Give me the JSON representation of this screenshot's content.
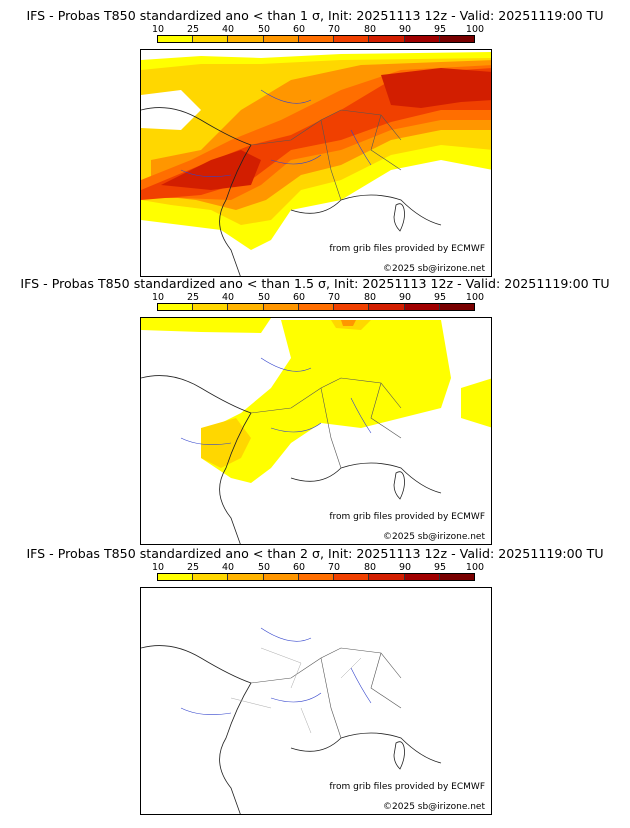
{
  "colorbar": {
    "ticks": [
      "10",
      "25",
      "40",
      "50",
      "60",
      "70",
      "80",
      "90",
      "95",
      "100"
    ],
    "colors": [
      "#ffff00",
      "#ffd700",
      "#ffb400",
      "#ff9600",
      "#ff6e00",
      "#f04000",
      "#d21e00",
      "#a00000",
      "#780000"
    ]
  },
  "panels": [
    {
      "title": "IFS - Probas T850  standardized ano < than 1 σ, Init: 20251113 12z - Valid: 20251119:00 TU",
      "credit_source": "from grib files provided by ECMWF",
      "credit_copy": "©2025 sb@irizone.net"
    },
    {
      "title": "IFS - Probas T850  standardized ano < than 1.5 σ, Init: 20251113 12z - Valid: 20251119:00 TU",
      "credit_source": "from grib files provided by ECMWF",
      "credit_copy": "©2025 sb@irizone.net"
    },
    {
      "title": "IFS - Probas T850  standardized ano < than 2 σ, Init: 20251113 12z - Valid: 20251119:00 TU",
      "credit_source": "from grib files provided by ECMWF",
      "credit_copy": "©2025 sb@irizone.net"
    }
  ]
}
